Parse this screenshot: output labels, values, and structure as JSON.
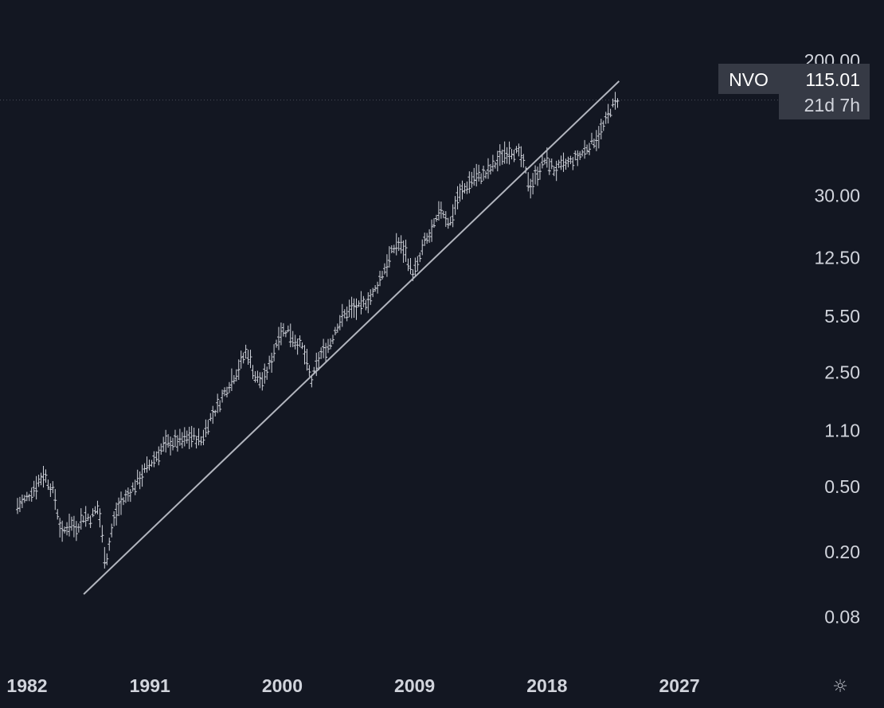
{
  "chart_data": {
    "type": "bar",
    "subtype": "ohlc-price-chart",
    "ticker": "NVO",
    "scale": "log",
    "grid": false,
    "y_ticks": [
      "200.00",
      "30.00",
      "12.50",
      "5.50",
      "2.50",
      "1.10",
      "0.50",
      "0.20",
      "0.08"
    ],
    "x_ticks": [
      "1982",
      "1991",
      "2000",
      "2009",
      "2018",
      "2027"
    ],
    "xlim": [
      1982,
      2029
    ],
    "ylim": [
      0.055,
      300
    ],
    "last_price": 115.01,
    "last_price_label": "115.01",
    "countdown_label": "21d 7h",
    "colors": {
      "background": "#131722",
      "bars": "#d1d4dc",
      "trendline": "#b2b5be",
      "text": "#d1d4dc",
      "badge": "#363a45"
    },
    "trendline": {
      "x": [
        1986.5,
        2022.9
      ],
      "y": [
        0.11,
        150
      ]
    },
    "series": [
      {
        "x": [
          1982.0,
          1982.6,
          1983.2,
          1983.8,
          1984.5,
          1985.0,
          1985.5,
          1986.0,
          1986.5,
          1987.0,
          1987.5,
          1988.0,
          1988.5,
          1988.9,
          1989.3,
          1989.8,
          1990.5,
          1991.2,
          1992.0,
          1992.5,
          1993.2,
          1993.8,
          1994.5,
          1995.0,
          1995.7,
          1996.3,
          1997.0,
          1997.6,
          1998.2,
          1998.7,
          1999.3,
          1999.8,
          2000.4,
          2000.9,
          2001.4,
          2002.0,
          2002.6,
          2003.0,
          2003.3,
          2003.7,
          2004.5,
          2005.3,
          2006.2,
          2007.0,
          2007.8,
          2008.4,
          2008.8,
          2009.2,
          2009.6,
          2010.2,
          2010.8,
          2011.4,
          2011.9,
          2012.4,
          2013.0,
          2013.8,
          2014.5,
          2015.1,
          2015.5,
          2016.2,
          2016.6,
          2016.9,
          2017.4,
          2017.9,
          2018.5,
          2019.0,
          2019.6,
          2020.2,
          2020.8,
          2021.4,
          2021.9,
          2022.3,
          2022.8
        ],
        "values": [
          0.38,
          0.42,
          0.5,
          0.6,
          0.45,
          0.25,
          0.3,
          0.28,
          0.33,
          0.32,
          0.38,
          0.17,
          0.3,
          0.38,
          0.42,
          0.48,
          0.6,
          0.72,
          0.9,
          0.93,
          0.95,
          1.02,
          0.95,
          1.25,
          1.6,
          2.05,
          2.6,
          3.4,
          2.3,
          2.2,
          3.0,
          4.4,
          4.5,
          3.9,
          3.5,
          2.2,
          3.2,
          3.5,
          3.8,
          4.8,
          6.0,
          6.2,
          7.5,
          11.0,
          15.5,
          13.5,
          10.0,
          11.0,
          15.0,
          18.0,
          25.0,
          20.0,
          29.0,
          33.0,
          39.0,
          40.0,
          47.0,
          55.0,
          57.0,
          53.0,
          40.0,
          34.0,
          42.0,
          50.0,
          43.0,
          45.0,
          48.0,
          52.0,
          60.0,
          68.0,
          80.0,
          100.0,
          115.01
        ]
      }
    ]
  }
}
